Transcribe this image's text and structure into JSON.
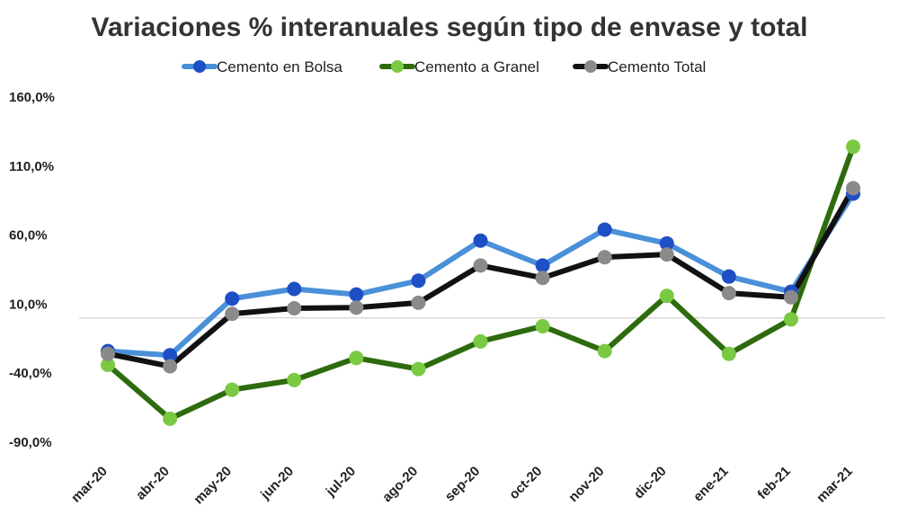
{
  "chart_data": {
    "type": "line",
    "title": "Variaciones % interanuales según tipo de envase y total",
    "xlabel": "",
    "ylabel": "",
    "ylim": [
      -90,
      160
    ],
    "yticks": [
      -90,
      -40,
      10,
      60,
      110,
      160
    ],
    "ytick_labels": [
      "-90,0%",
      "-40,0%",
      "10,0%",
      "60,0%",
      "110,0%",
      "160,0%"
    ],
    "zero_line": 0,
    "legend_position": "top-center",
    "categories": [
      "mar-20",
      "abr-20",
      "may-20",
      "jun-20",
      "jul-20",
      "ago-20",
      "sep-20",
      "oct-20",
      "nov-20",
      "dic-20",
      "ene-21",
      "feb-21",
      "mar-21"
    ],
    "series": [
      {
        "name": "Cemento en Bolsa",
        "line_color": "#4a90d9",
        "marker_color": "#1f4fc4",
        "values": [
          -24,
          -27,
          14,
          21,
          17,
          27,
          56,
          38,
          64,
          54,
          30,
          19,
          90
        ]
      },
      {
        "name": "Cemento a Granel",
        "line_color": "#2e6b0e",
        "marker_color": "#7ac943",
        "values": [
          -34,
          -73,
          -52,
          -45,
          -29,
          -37,
          -17,
          -6,
          -24,
          16,
          -26,
          -1,
          124
        ]
      },
      {
        "name": "Cemento Total",
        "line_color": "#111111",
        "marker_color": "#8a8a8a",
        "values": [
          -26,
          -35,
          3,
          7,
          7.5,
          11,
          38,
          29,
          44,
          46,
          18,
          15,
          94
        ]
      }
    ]
  }
}
